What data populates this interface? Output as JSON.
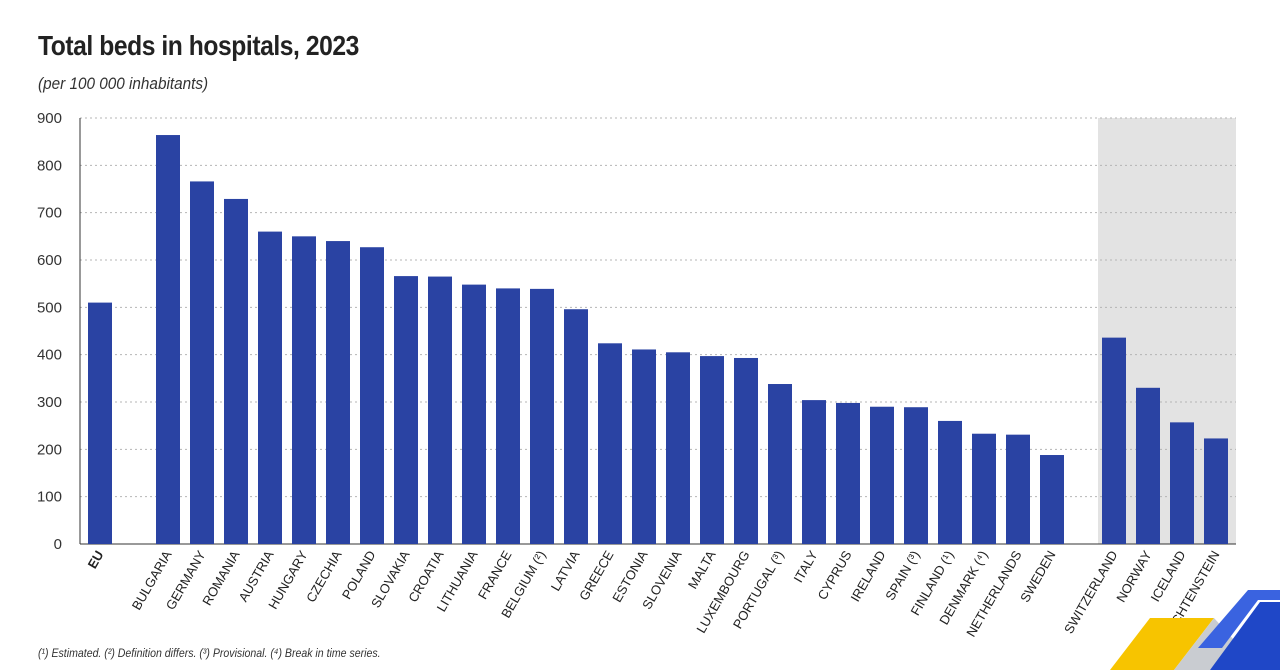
{
  "chart_data": {
    "type": "bar",
    "title": "Total beds in hospitals, 2023",
    "subtitle": "(per 100 000 inhabitants)",
    "ylim": [
      0,
      900
    ],
    "yticks": [
      0,
      100,
      200,
      300,
      400,
      500,
      600,
      700,
      800,
      900
    ],
    "grid": true,
    "groups": [
      {
        "name": "eu",
        "shaded": false,
        "categories": [
          "EU"
        ],
        "values": [
          510
        ]
      },
      {
        "name": "members",
        "shaded": false,
        "categories": [
          "BULGARIA",
          "GERMANY",
          "ROMANIA",
          "AUSTRIA",
          "HUNGARY",
          "CZECHIA",
          "POLAND",
          "SLOVAKIA",
          "CROATIA",
          "LITHUANIA",
          "FRANCE",
          "BELGIUM (²)",
          "LATVIA",
          "GREECE",
          "ESTONIA",
          "SLOVENIA",
          "MALTA",
          "LUXEMBOURG",
          "PORTUGAL (³)",
          "ITALY",
          "CYPRUS",
          "IRELAND",
          "SPAIN (³)",
          "FINLAND (¹)",
          "DENMARK (⁴)",
          "NETHERLANDS",
          "SWEDEN"
        ],
        "values": [
          864,
          766,
          729,
          660,
          650,
          640,
          627,
          566,
          565,
          548,
          540,
          539,
          496,
          424,
          411,
          405,
          397,
          393,
          338,
          304,
          298,
          290,
          289,
          260,
          233,
          231,
          188
        ]
      },
      {
        "name": "efta",
        "shaded": true,
        "categories": [
          "SWITZERLAND",
          "NORWAY",
          "ICELAND",
          "LIECHTENSTEIN"
        ],
        "values": [
          436,
          330,
          257,
          223
        ]
      }
    ],
    "colors": {
      "bar": "#2a43a3",
      "shade": "#e3e3e3",
      "grid": "#b5b5b5",
      "axis": "#333333"
    },
    "footnote": "(¹) Estimated. (²) Definition differs. (³) Provisional. (⁴) Break in time series."
  }
}
